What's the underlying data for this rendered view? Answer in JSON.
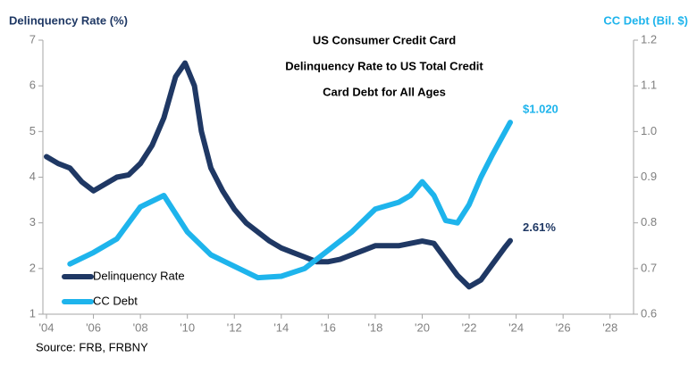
{
  "chart_data": {
    "type": "line",
    "title": [
      "US Consumer Credit Card",
      "Delinquency Rate to US Total Credit",
      "Card Debt for All Ages"
    ],
    "y_label": "Delinquency Rate (%)",
    "y2_label": "CC Debt (Bil. $)",
    "source": "Source:  FRB, FRBNY",
    "xlim": [
      2004,
      2029
    ],
    "xticks": [
      {
        "value": 2004,
        "label": "'04"
      },
      {
        "value": 2006,
        "label": "'06"
      },
      {
        "value": 2008,
        "label": "'08"
      },
      {
        "value": 2010,
        "label": "'10"
      },
      {
        "value": 2012,
        "label": "'12"
      },
      {
        "value": 2014,
        "label": "'14"
      },
      {
        "value": 2016,
        "label": "'16"
      },
      {
        "value": 2018,
        "label": "'18"
      },
      {
        "value": 2020,
        "label": "'20"
      },
      {
        "value": 2022,
        "label": "'22"
      },
      {
        "value": 2024,
        "label": "'24"
      },
      {
        "value": 2026,
        "label": "'26"
      },
      {
        "value": 2028,
        "label": "'28"
      }
    ],
    "ylim": [
      1,
      7
    ],
    "yticks": [
      1,
      2,
      3,
      4,
      5,
      6,
      7
    ],
    "y2lim": [
      0.6,
      1.2
    ],
    "y2ticks": [
      0.6,
      0.7,
      0.8,
      0.9,
      {
        "value": 1.0,
        "label": "1.0"
      },
      1.1,
      1.2
    ],
    "series": [
      {
        "name": "Delinquency Rate",
        "color": "#1f3864",
        "x": [
          2004,
          2004.5,
          2005,
          2005.5,
          2006,
          2006.5,
          2007,
          2007.5,
          2008,
          2008.5,
          2009,
          2009.5,
          2009.9,
          2010.3,
          2010.6,
          2011,
          2011.5,
          2012,
          2012.5,
          2013,
          2013.5,
          2014,
          2014.5,
          2015,
          2015.5,
          2016,
          2016.5,
          2017,
          2017.5,
          2018,
          2018.5,
          2019,
          2019.5,
          2020,
          2020.5,
          2021,
          2021.5,
          2022,
          2022.5,
          2023,
          2023.5,
          2023.75
        ],
        "values": [
          4.45,
          4.3,
          4.2,
          3.9,
          3.7,
          3.85,
          4.0,
          4.05,
          4.3,
          4.7,
          5.3,
          6.2,
          6.5,
          6.0,
          5.0,
          4.2,
          3.7,
          3.3,
          3.0,
          2.8,
          2.6,
          2.45,
          2.35,
          2.25,
          2.15,
          2.15,
          2.2,
          2.3,
          2.4,
          2.5,
          2.5,
          2.5,
          2.55,
          2.6,
          2.55,
          2.2,
          1.85,
          1.6,
          1.75,
          2.1,
          2.45,
          2.61
        ],
        "end_label": "2.61%"
      },
      {
        "name": "CC Debt",
        "color": "#1eb4ec",
        "axis": "y2",
        "x": [
          2005,
          2006,
          2007,
          2008,
          2009,
          2009.5,
          2010,
          2011,
          2012,
          2013,
          2014,
          2015,
          2016,
          2017,
          2018,
          2019,
          2019.5,
          2020,
          2020.5,
          2021,
          2021.5,
          2022,
          2022.5,
          2023,
          2023.75
        ],
        "values": [
          0.71,
          0.735,
          0.765,
          0.835,
          0.86,
          0.82,
          0.78,
          0.73,
          0.705,
          0.68,
          0.683,
          0.7,
          0.74,
          0.78,
          0.83,
          0.845,
          0.86,
          0.89,
          0.86,
          0.805,
          0.8,
          0.84,
          0.9,
          0.95,
          1.02
        ],
        "end_label": "$1.020"
      }
    ]
  }
}
